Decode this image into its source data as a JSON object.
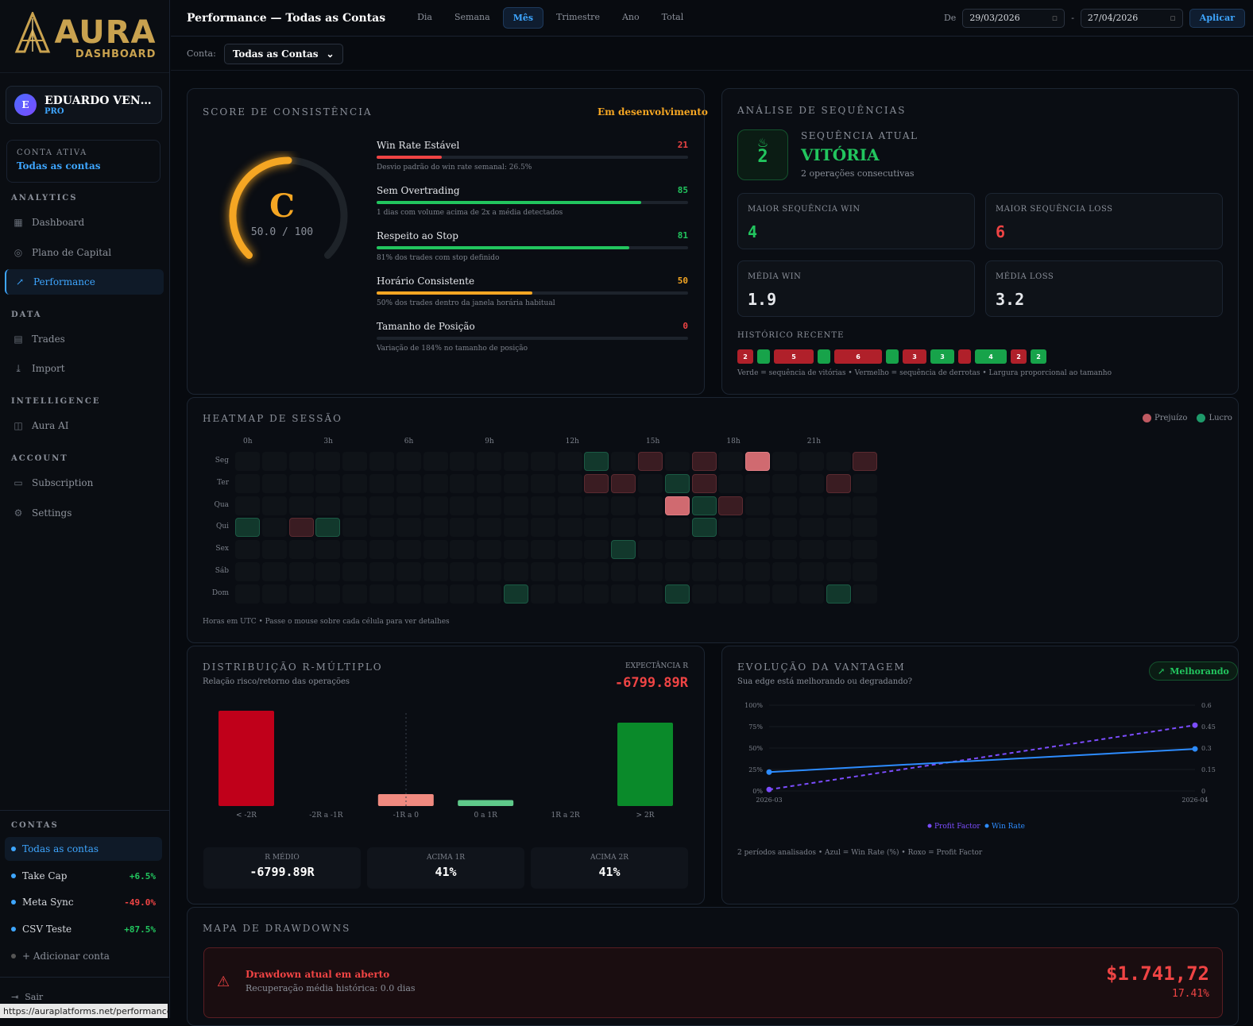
{
  "brand": {
    "logo_big": "AURA",
    "logo_sub": "DASHBOARD"
  },
  "user": {
    "initial": "E",
    "name": "EDUARDO VENTURA",
    "plan": "PRO"
  },
  "active_account": {
    "label": "CONTA ATIVA",
    "value": "Todas as contas"
  },
  "sidebar": {
    "sections": [
      {
        "title": "ANALYTICS",
        "items": [
          "Dashboard",
          "Plano de Capital",
          "Performance"
        ]
      },
      {
        "title": "DATA",
        "items": [
          "Trades",
          "Import"
        ]
      },
      {
        "title": "INTELLIGENCE",
        "items": [
          "Aura AI"
        ]
      },
      {
        "title": "ACCOUNT",
        "items": [
          "Subscription",
          "Settings"
        ]
      }
    ],
    "contas_title": "CONTAS",
    "accounts": [
      {
        "name": "Todas as contas",
        "pct": ""
      },
      {
        "name": "Take Cap",
        "pct": "+6.5%",
        "color": "#22c55e"
      },
      {
        "name": "Meta Sync",
        "pct": "-49.0%",
        "color": "#ef4444"
      },
      {
        "name": "CSV Teste",
        "pct": "+87.5%",
        "color": "#22c55e"
      }
    ],
    "add_account": "+ Adicionar conta",
    "logout": "Sair",
    "status_url": "https://auraplatforms.net/performance"
  },
  "topbar": {
    "title": "Performance — Todas as Contas",
    "tabs": [
      "Dia",
      "Semana",
      "Mês",
      "Trimestre",
      "Ano",
      "Total"
    ],
    "active_tab": "Mês",
    "from_label": "De",
    "date_from": "29/03/2026",
    "date_sep": "-",
    "date_to": "27/04/2026",
    "apply": "Aplicar"
  },
  "subbar": {
    "label": "Conta:",
    "select": "Todas as Contas"
  },
  "consistency": {
    "title": "SCORE DE CONSISTÊNCIA",
    "status": "Em desenvolvimento",
    "grade": "C",
    "score": "50.0 / 100",
    "score_value": 50,
    "metrics": [
      {
        "name": "Win Rate Estável",
        "value": "21",
        "desc": "Desvio padrão do win rate semanal: 26.5%",
        "color": "#ef4444"
      },
      {
        "name": "Sem Overtrading",
        "value": "85",
        "desc": "1 dias com volume acima de 2x a média detectados",
        "color": "#22c55e"
      },
      {
        "name": "Respeito ao Stop",
        "value": "81",
        "desc": "81% dos trades com stop definido",
        "color": "#22c55e"
      },
      {
        "name": "Horário Consistente",
        "value": "50",
        "desc": "50% dos trades dentro da janela horária habitual",
        "color": "#f5a623"
      },
      {
        "name": "Tamanho de Posição",
        "value": "0",
        "desc": "Variação de 184% no tamanho de posição",
        "color": "#ef4444"
      }
    ]
  },
  "sequences": {
    "title": "ANÁLISE DE SEQUÊNCIAS",
    "current_label": "SEQUÊNCIA ATUAL",
    "current_value": "2",
    "current_type": "VITÓRIA",
    "current_desc": "2 operações consecutivas",
    "stats": [
      {
        "label": "MAIOR SEQUÊNCIA WIN",
        "value": "4",
        "color": "#22c55e"
      },
      {
        "label": "MAIOR SEQUÊNCIA LOSS",
        "value": "6",
        "color": "#ef4444"
      },
      {
        "label": "MÉDIA WIN",
        "value": "1.9",
        "color": "#e5e7eb"
      },
      {
        "label": "MÉDIA LOSS",
        "value": "3.2",
        "color": "#e5e7eb"
      }
    ],
    "history_label": "HISTÓRICO RECENTE",
    "history": [
      {
        "n": "2",
        "t": "loss"
      },
      {
        "n": "",
        "t": "win"
      },
      {
        "n": "5",
        "t": "loss"
      },
      {
        "n": "",
        "t": "win"
      },
      {
        "n": "6",
        "t": "loss"
      },
      {
        "n": "",
        "t": "win"
      },
      {
        "n": "3",
        "t": "loss"
      },
      {
        "n": "3",
        "t": "win"
      },
      {
        "n": "",
        "t": "loss"
      },
      {
        "n": "4",
        "t": "win"
      },
      {
        "n": "2",
        "t": "loss"
      },
      {
        "n": "2",
        "t": "win"
      }
    ],
    "legend": "Verde = sequência de vitórias • Vermelho = sequência de derrotas • Largura proporcional ao tamanho"
  },
  "heatmap": {
    "title": "HEATMAP DE SESSÃO",
    "legend_loss": "Prejuízo",
    "legend_win": "Lucro",
    "days": [
      "Seg",
      "Ter",
      "Qua",
      "Qui",
      "Sex",
      "Sáb",
      "Dom"
    ],
    "hour_labels": [
      "0h",
      "3h",
      "6h",
      "9h",
      "12h",
      "15h",
      "18h",
      "21h"
    ],
    "cells": [
      {
        "d": 0,
        "h": 13,
        "t": "w"
      },
      {
        "d": 0,
        "h": 15,
        "t": "l"
      },
      {
        "d": 0,
        "h": 17,
        "t": "l"
      },
      {
        "d": 0,
        "h": 19,
        "t": "L"
      },
      {
        "d": 0,
        "h": 23,
        "t": "l"
      },
      {
        "d": 1,
        "h": 13,
        "t": "l"
      },
      {
        "d": 1,
        "h": 14,
        "t": "l"
      },
      {
        "d": 1,
        "h": 16,
        "t": "w"
      },
      {
        "d": 1,
        "h": 17,
        "t": "l"
      },
      {
        "d": 1,
        "h": 22,
        "t": "l"
      },
      {
        "d": 2,
        "h": 16,
        "t": "L"
      },
      {
        "d": 2,
        "h": 17,
        "t": "w"
      },
      {
        "d": 2,
        "h": 18,
        "t": "l"
      },
      {
        "d": 3,
        "h": 0,
        "t": "w"
      },
      {
        "d": 3,
        "h": 2,
        "t": "l"
      },
      {
        "d": 3,
        "h": 3,
        "t": "w"
      },
      {
        "d": 3,
        "h": 17,
        "t": "w"
      },
      {
        "d": 4,
        "h": 14,
        "t": "w"
      },
      {
        "d": 6,
        "h": 10,
        "t": "w"
      },
      {
        "d": 6,
        "h": 16,
        "t": "w"
      },
      {
        "d": 6,
        "h": 22,
        "t": "w"
      }
    ],
    "footer": "Horas em UTC • Passe o mouse sobre cada célula para ver detalhes"
  },
  "r_multiple": {
    "title": "DISTRIBUIÇÃO R-MÚLTIPLO",
    "subtitle": "Relação risco/retorno das operações",
    "exp_label": "EXPECTÂNCIA R",
    "exp_value": "-6799.89R",
    "chart_data": {
      "type": "bar",
      "categories": [
        "< -2R",
        "-2R a -1R",
        "-1R a 0",
        "0 a 1R",
        "1R a 2R",
        "> 2R"
      ],
      "values": [
        8,
        0,
        1,
        0.5,
        0,
        7
      ],
      "colors": [
        "#c0001a",
        "#c0001a",
        "#f08a80",
        "#5fc98a",
        "#5fc98a",
        "#0a8a2a"
      ]
    },
    "boxes": [
      {
        "label": "R MÉDIO",
        "value": "-6799.89R"
      },
      {
        "label": "ACIMA 1R",
        "value": "41%"
      },
      {
        "label": "ACIMA 2R",
        "value": "41%"
      }
    ]
  },
  "edge": {
    "title": "EVOLUÇÃO DA VANTAGEM",
    "subtitle": "Sua edge está melhorando ou degradando?",
    "badge": "Melhorando",
    "chart_data": {
      "type": "line",
      "x": [
        "2026-03",
        "2026-04"
      ],
      "series": [
        {
          "name": "Profit Factor",
          "values": [
            0.01,
            0.46
          ],
          "axis": "right",
          "color": "#7c4dff"
        },
        {
          "name": "Win Rate",
          "values": [
            22,
            49
          ],
          "axis": "left",
          "color": "#2d8cff"
        }
      ],
      "left_ticks": [
        "100%",
        "75%",
        "50%",
        "25%",
        "0%"
      ],
      "right_ticks": [
        "0.6",
        "0.45",
        "0.3",
        "0.15",
        "0"
      ],
      "ylim_left": [
        0,
        100
      ],
      "ylim_right": [
        0,
        0.6
      ]
    },
    "footer": "2 períodos analisados • Azul = Win Rate (%) • Roxo = Profit Factor"
  },
  "drawdown": {
    "title": "MAPA DE DRAWDOWNS",
    "alert_title": "Drawdown atual em aberto",
    "alert_desc": "Recuperação média histórica: 0.0 dias",
    "amount": "$1.741,72",
    "pct": "17.41%"
  }
}
